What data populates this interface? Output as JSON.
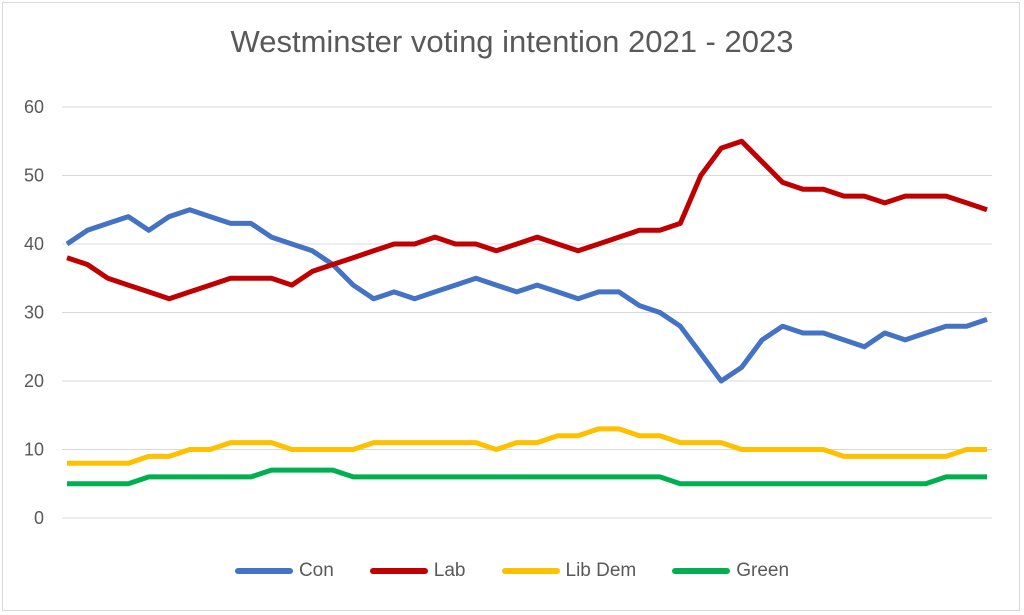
{
  "chart_data": {
    "type": "line",
    "title": "Westminster voting intention 2021 - 2023",
    "xlabel": "",
    "ylabel": "",
    "ylim": [
      0,
      60
    ],
    "yticks": [
      0,
      10,
      20,
      30,
      40,
      50,
      60
    ],
    "grid": true,
    "legend_position": "bottom",
    "n_points": 46,
    "series": [
      {
        "name": "Con",
        "color": "#4472c4",
        "values": [
          40,
          42,
          43,
          44,
          42,
          44,
          45,
          44,
          43,
          43,
          41,
          40,
          39,
          37,
          34,
          32,
          33,
          32,
          33,
          34,
          35,
          34,
          33,
          34,
          33,
          32,
          33,
          33,
          31,
          30,
          28,
          24,
          20,
          22,
          26,
          28,
          27,
          27,
          26,
          25,
          27,
          26,
          27,
          28,
          28,
          29
        ]
      },
      {
        "name": "Lab",
        "color": "#c00000",
        "values": [
          38,
          37,
          35,
          34,
          33,
          32,
          33,
          34,
          35,
          35,
          35,
          34,
          36,
          37,
          38,
          39,
          40,
          40,
          41,
          40,
          40,
          39,
          40,
          41,
          40,
          39,
          40,
          41,
          42,
          42,
          43,
          50,
          54,
          55,
          52,
          49,
          48,
          48,
          47,
          47,
          46,
          47,
          47,
          47,
          46,
          45
        ]
      },
      {
        "name": "Lib Dem",
        "color": "#ffc000",
        "values": [
          8,
          8,
          8,
          8,
          9,
          9,
          10,
          10,
          11,
          11,
          11,
          10,
          10,
          10,
          10,
          11,
          11,
          11,
          11,
          11,
          11,
          10,
          11,
          11,
          12,
          12,
          13,
          13,
          12,
          12,
          11,
          11,
          11,
          10,
          10,
          10,
          10,
          10,
          9,
          9,
          9,
          9,
          9,
          9,
          10,
          10
        ]
      },
      {
        "name": "Green",
        "color": "#00b050",
        "values": [
          5,
          5,
          5,
          5,
          6,
          6,
          6,
          6,
          6,
          6,
          7,
          7,
          7,
          7,
          6,
          6,
          6,
          6,
          6,
          6,
          6,
          6,
          6,
          6,
          6,
          6,
          6,
          6,
          6,
          6,
          5,
          5,
          5,
          5,
          5,
          5,
          5,
          5,
          5,
          5,
          5,
          5,
          5,
          6,
          6,
          6
        ]
      }
    ]
  }
}
